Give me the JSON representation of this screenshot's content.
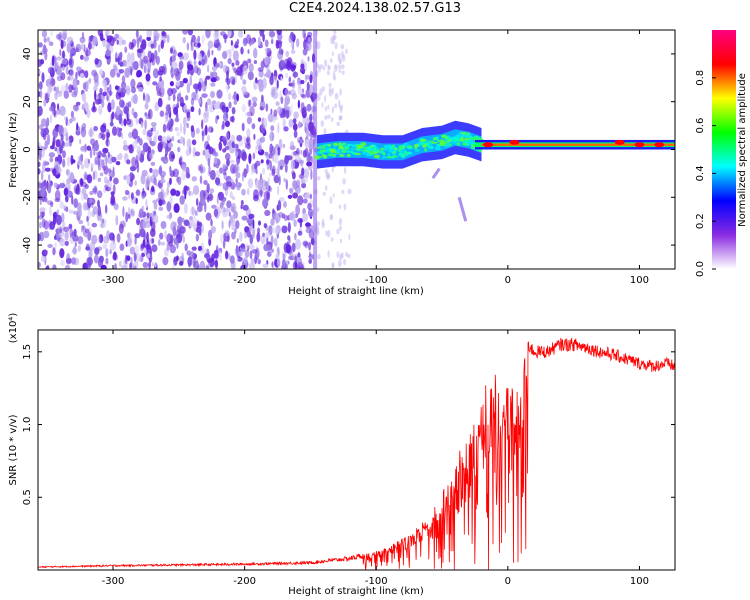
{
  "title": "C2E4.2024.138.02.57.G13",
  "chart_data": [
    {
      "type": "heatmap",
      "xlabel": "Height of straight line (km)",
      "ylabel": "Frequency (Hz)",
      "xlim": [
        -357,
        127
      ],
      "ylim": [
        -50,
        50
      ],
      "x_ticks": [
        -300,
        -200,
        -100,
        0,
        100
      ],
      "y_ticks": [
        -40,
        -20,
        0,
        20,
        40
      ],
      "colorbar": {
        "label": "Normalized spectral amplitude",
        "range": [
          0,
          1
        ],
        "ticks": [
          "0.0",
          "0.2",
          "0.4",
          "0.6",
          "0.8"
        ],
        "colors": [
          "#ffffff",
          "#8a2be2",
          "#0000ff",
          "#00ffff",
          "#00ff00",
          "#ffff00",
          "#ff0000",
          "#ff0080"
        ]
      },
      "regions": [
        {
          "x_range": [
            -357,
            -145
          ],
          "y_range": [
            -50,
            50
          ],
          "amplitude": 0.1,
          "note": "broadband noise"
        },
        {
          "x_range": [
            -145,
            -120
          ],
          "y_range": [
            -50,
            50
          ],
          "amplitude": 0.05,
          "note": "sparse noise"
        },
        {
          "x_range": [
            -145,
            -25
          ],
          "center_freq": [
            -3,
            0,
            3,
            5,
            2
          ],
          "amplitude": 0.4,
          "note": "tone band"
        },
        {
          "x_range": [
            -25,
            127
          ],
          "center_freq": 2,
          "amplitude": 0.85,
          "note": "strong tone"
        }
      ],
      "grid": false
    },
    {
      "type": "line",
      "xlabel": "Height of straight line (km)",
      "ylabel": "SNR (10 * v/v)",
      "yscale_label": "(x10⁴)",
      "xlim": [
        -357,
        127
      ],
      "ylim": [
        0,
        16500
      ],
      "x_ticks": [
        -300,
        -200,
        -100,
        0,
        100
      ],
      "y_ticks": [
        {
          "value": 5000,
          "label": "0.5"
        },
        {
          "value": 10000,
          "label": "1.0"
        },
        {
          "value": 15000,
          "label": "1.5"
        }
      ],
      "series": [
        {
          "color": "#ff0000",
          "x": [
            -357,
            -300,
            -200,
            -150,
            -120,
            -100,
            -80,
            -60,
            -50,
            -40,
            -30,
            -20,
            -10,
            -5,
            0,
            5,
            10,
            15,
            20,
            30,
            40,
            50,
            60,
            70,
            80,
            90,
            100,
            110,
            120,
            127
          ],
          "values": [
            200,
            300,
            400,
            500,
            800,
            1200,
            2000,
            3500,
            5000,
            7000,
            9000,
            11000,
            12500,
            11000,
            12000,
            11500,
            13000,
            15500,
            15000,
            15000,
            15500,
            15500,
            15300,
            15000,
            14800,
            14500,
            14200,
            14000,
            14200,
            14000
          ]
        }
      ],
      "grid": false
    }
  ]
}
